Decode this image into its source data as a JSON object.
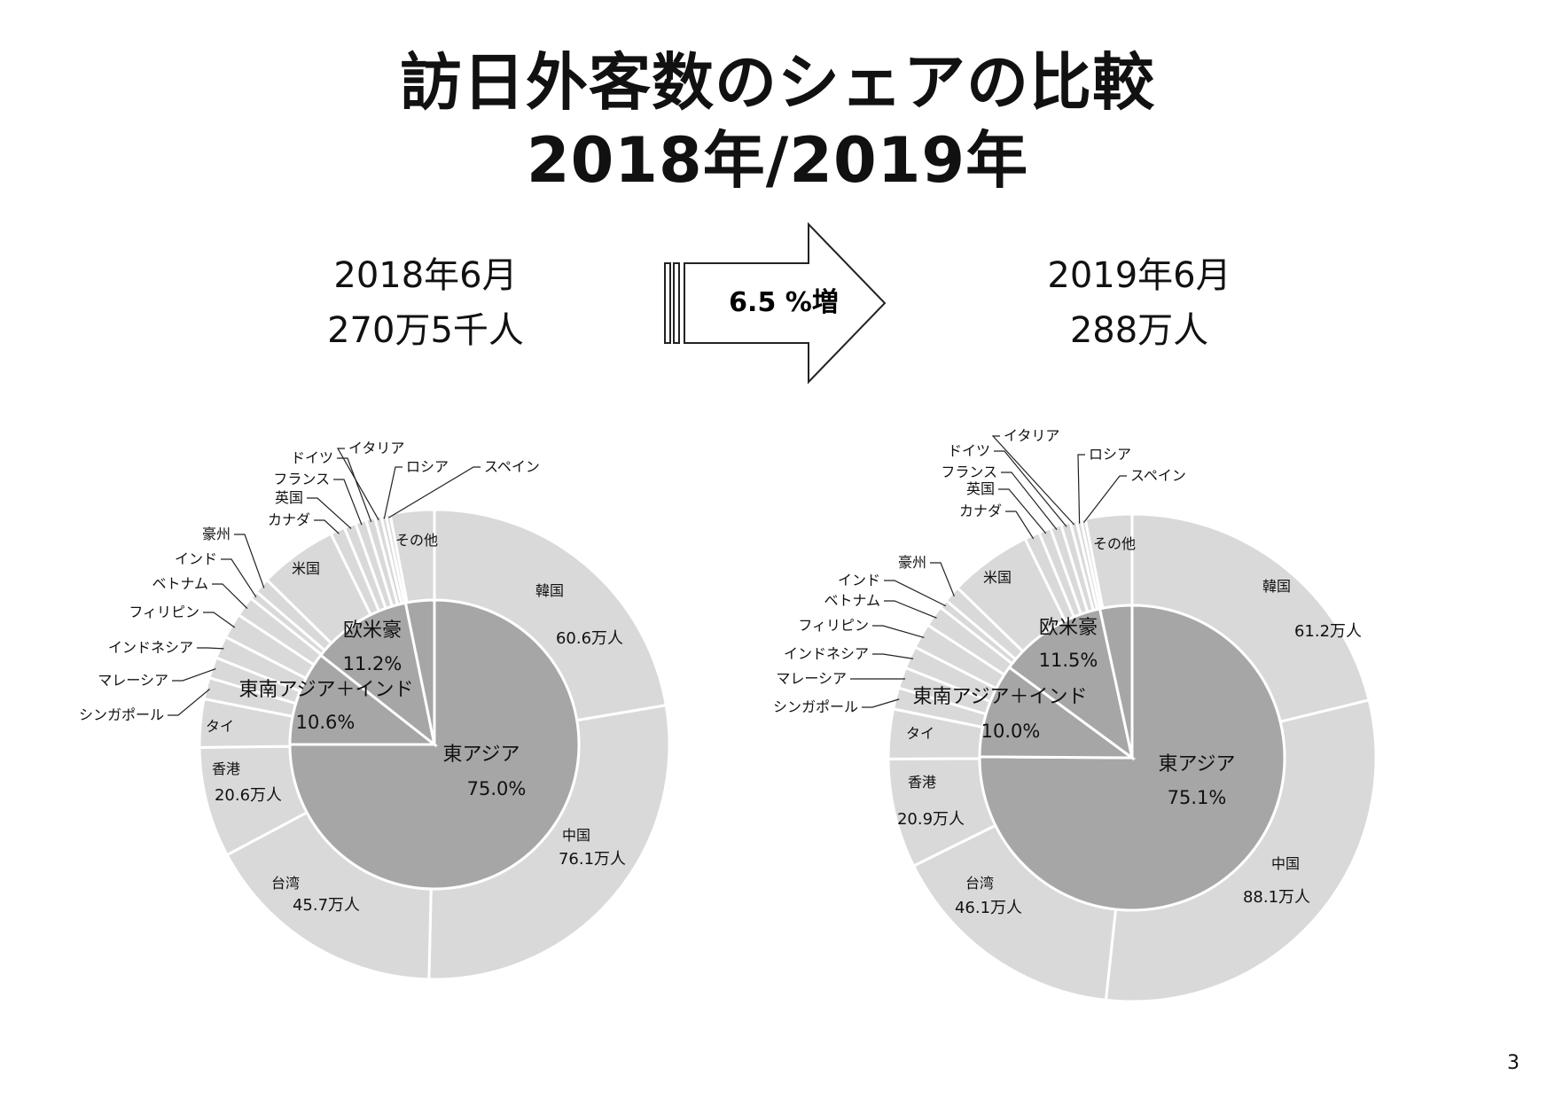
{
  "title": {
    "line1": "訪日外客数のシェアの比較",
    "line2": "2018年/2019年"
  },
  "left_header": {
    "date": "2018年6月",
    "total": "270万5千人"
  },
  "right_header": {
    "date": "2019年6月",
    "total": "288万人"
  },
  "arrow": {
    "label": "6.5 %増"
  },
  "page_number": "3",
  "colors": {
    "inner": "#a6a6a6",
    "outer": "#d9d9d9",
    "border": "#ffffff",
    "text": "#111111"
  },
  "chart_data": [
    {
      "type": "pie",
      "variant": "two-level donut",
      "inner": [
        {
          "label": "東アジア",
          "value_label": "75.0%",
          "value": 75.0
        },
        {
          "label": "東南アジア＋インド",
          "value_label": "10.6%",
          "value": 10.6
        },
        {
          "label": "欧米豪",
          "value_label": "11.2%",
          "value": 11.2
        },
        {
          "label": "",
          "value_label": "",
          "value": 3.2
        }
      ],
      "outer": [
        {
          "label": "韓国",
          "value_label": "60.6万人",
          "value": 60.6
        },
        {
          "label": "中国",
          "value_label": "76.1万人",
          "value": 76.1
        },
        {
          "label": "台湾",
          "value_label": "45.7万人",
          "value": 45.7
        },
        {
          "label": "香港",
          "value_label": "20.6万人",
          "value": 20.6
        },
        {
          "label": "タイ",
          "value": 9.0
        },
        {
          "label": "シンガポール",
          "value": 4.0
        },
        {
          "label": "マレーシア",
          "value": 3.9
        },
        {
          "label": "インドネシア",
          "value": 4.2
        },
        {
          "label": "フィリピン",
          "value": 4.7
        },
        {
          "label": "ベトナム",
          "value": 3.8
        },
        {
          "label": "インド",
          "value": 1.6
        },
        {
          "label": "豪州",
          "value": 2.9
        },
        {
          "label": "米国",
          "value": 14.6
        },
        {
          "label": "カナダ",
          "value": 2.7
        },
        {
          "label": "英国",
          "value": 2.2
        },
        {
          "label": "フランス",
          "value": 2.0
        },
        {
          "label": "ドイツ",
          "value": 1.7
        },
        {
          "label": "イタリア",
          "value": 1.2
        },
        {
          "label": "ロシア",
          "value": 0.9
        },
        {
          "label": "スペイン",
          "value": 0.8
        },
        {
          "label": "その他",
          "value": 8.2
        }
      ]
    },
    {
      "type": "pie",
      "variant": "two-level donut",
      "inner": [
        {
          "label": "東アジア",
          "value_label": "75.1%",
          "value": 75.1
        },
        {
          "label": "東南アジア＋インド",
          "value_label": "10.0%",
          "value": 10.0
        },
        {
          "label": "欧米豪",
          "value_label": "11.5%",
          "value": 11.5
        },
        {
          "label": "",
          "value_label": "",
          "value": 3.4
        }
      ],
      "outer": [
        {
          "label": "韓国",
          "value_label": "61.2万人",
          "value": 61.2
        },
        {
          "label": "中国",
          "value_label": "88.1万人",
          "value": 88.1
        },
        {
          "label": "台湾",
          "value_label": "46.1万人",
          "value": 46.1
        },
        {
          "label": "香港",
          "value_label": "20.9万人",
          "value": 20.9
        },
        {
          "label": "タイ",
          "value": 9.5
        },
        {
          "label": "シンガポール",
          "value": 4.1
        },
        {
          "label": "マレーシア",
          "value": 4.0
        },
        {
          "label": "インドネシア",
          "value": 4.3
        },
        {
          "label": "フィリピン",
          "value": 4.8
        },
        {
          "label": "ベトナム",
          "value": 4.1
        },
        {
          "label": "インド",
          "value": 1.7
        },
        {
          "label": "豪州",
          "value": 3.2
        },
        {
          "label": "米国",
          "value": 15.8
        },
        {
          "label": "カナダ",
          "value": 2.9
        },
        {
          "label": "英国",
          "value": 2.3
        },
        {
          "label": "フランス",
          "value": 2.1
        },
        {
          "label": "ドイツ",
          "value": 1.8
        },
        {
          "label": "イタリア",
          "value": 1.2
        },
        {
          "label": "ロシア",
          "value": 0.9
        },
        {
          "label": "スペイン",
          "value": 0.8
        },
        {
          "label": "その他",
          "value": 8.9
        }
      ]
    }
  ]
}
